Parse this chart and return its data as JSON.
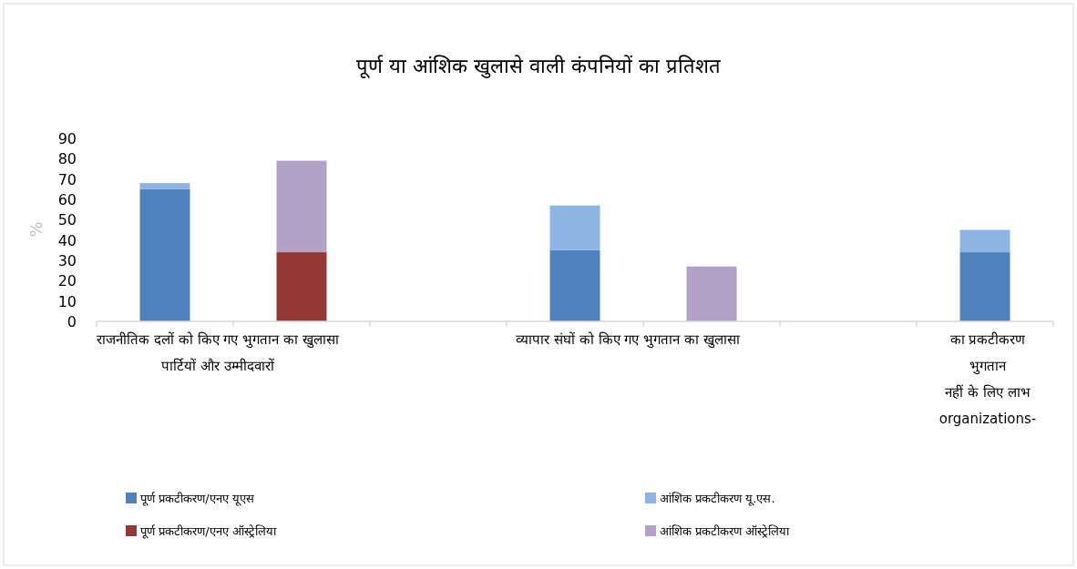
{
  "chart_data": {
    "type": "bar",
    "stacked": true,
    "title": "पूर्ण या आंशिक खुलासे वाली कंपनियों का प्रतिशत",
    "ylabel": "%",
    "categories": [
      "राजनीतिक दलों को किए गए भुगतान का खुलासा\nपार्टियों और उम्मीदवारों",
      null,
      null,
      "व्यापार संघों को किए गए भुगतान का खुलासा",
      null,
      null,
      "का प्रकटीकरण\nभुगतान\nनहीं के लिए लाभ\norganizations-"
    ],
    "series": [
      {
        "name": "पूर्ण प्रकटीकरण/एनए यूएस",
        "color": "#4f81bd",
        "values": [
          65,
          null,
          null,
          35,
          null,
          null,
          34
        ]
      },
      {
        "name": "आंशिक प्रकटीकरण यू.एस.",
        "color": "#8eb4e3",
        "values": [
          3,
          null,
          null,
          22,
          null,
          null,
          11
        ]
      },
      {
        "name": "पूर्ण प्रकटीकरण/एनए ऑस्ट्रेलिया",
        "color": "#953735",
        "values": [
          null,
          34,
          null,
          null,
          null,
          null,
          null
        ]
      },
      {
        "name": "आंशिक प्रकटीकरण ऑस्ट्रेलिया",
        "color": "#b3a2c7",
        "values": [
          null,
          45,
          null,
          null,
          27,
          null,
          null
        ]
      }
    ],
    "ylim": [
      0,
      90
    ],
    "yticks": [
      0,
      10,
      20,
      30,
      40,
      50,
      60,
      70,
      80,
      90
    ],
    "grid": false,
    "legend": "bottom"
  }
}
